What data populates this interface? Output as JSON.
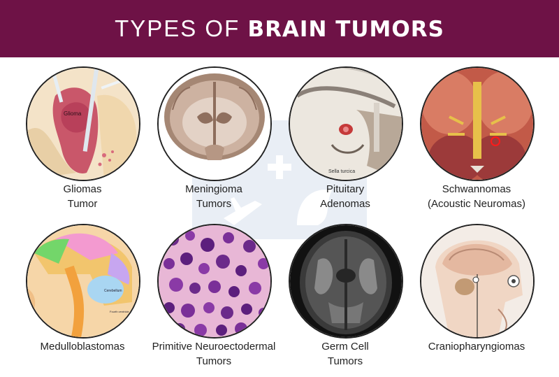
{
  "header": {
    "title_light": "TYPES OF ",
    "title_bold": "BRAIN TUMORS",
    "background_color": "#6e1246"
  },
  "tumors": [
    {
      "line1": "Gliomas",
      "line2": "Tumor",
      "inner_label": "Glioma",
      "image": "glioma-illustration-icon"
    },
    {
      "line1": "Meningioma",
      "line2": "Tumors",
      "image": "brain-coronal-section-icon"
    },
    {
      "line1": "Pituitary",
      "line2": "Adenomas",
      "inner_label": "Sella turcica",
      "image": "pituitary-sagittal-icon"
    },
    {
      "line1": "Schwannomas",
      "line2": "(Acoustic Neuromas)",
      "image": "brain-base-nerves-icon"
    },
    {
      "line1": "Medulloblastomas",
      "line2": "",
      "inner_label": "Cerebellum",
      "inner_label2": "Fourth ventricle",
      "image": "head-sagittal-colored-icon"
    },
    {
      "line1": "Primitive Neuroectodermal",
      "line2": "Tumors",
      "image": "histology-cells-icon"
    },
    {
      "line1": "Germ Cell",
      "line2": "Tumors",
      "image": "mri-axial-scan-icon"
    },
    {
      "line1": "Craniopharyngiomas",
      "line2": "",
      "image": "head-anatomy-icon"
    }
  ]
}
